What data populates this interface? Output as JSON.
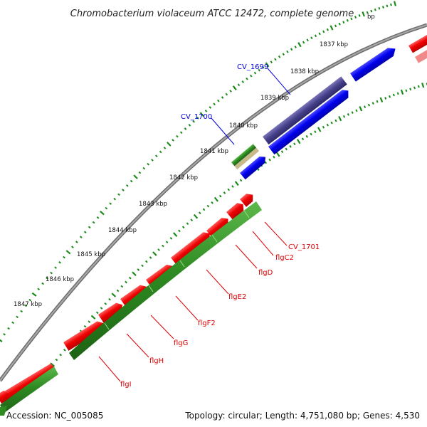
{
  "title": "Chromobacterium violaceum ATCC 12472, complete genome",
  "footer": {
    "accession": "Accession: NC_005085",
    "summary": "Topology: circular; Length: 4,751,080 bp; Genes: 4,530"
  },
  "colors": {
    "backbone": "#8a8a8a",
    "tick": "#1a8a1a",
    "forward_red": "#ee0000",
    "reverse_green": "#2e8b22",
    "blue": "#0000ee",
    "purple": "#46408a",
    "tan": "#c8b98a",
    "label_red": "#dd0000",
    "label_blue": "#0000dd"
  },
  "kbp_labels": [
    "1837 kbp",
    "1838 kbp",
    "1839 kbp",
    "1840 kbp",
    "1841 kbp",
    "1842 kbp",
    "1843 kbp",
    "1844 kbp",
    "1845 kbp",
    "1846 kbp",
    "1847 kbp"
  ],
  "kbp_partial": "bp",
  "gene_labels_blue": [
    "CV_1699",
    "CV_1700"
  ],
  "gene_labels_red": [
    "CV_1701",
    "flgC2",
    "flgD",
    "flgE2",
    "flgF2",
    "flgG",
    "flgH",
    "flgI"
  ]
}
